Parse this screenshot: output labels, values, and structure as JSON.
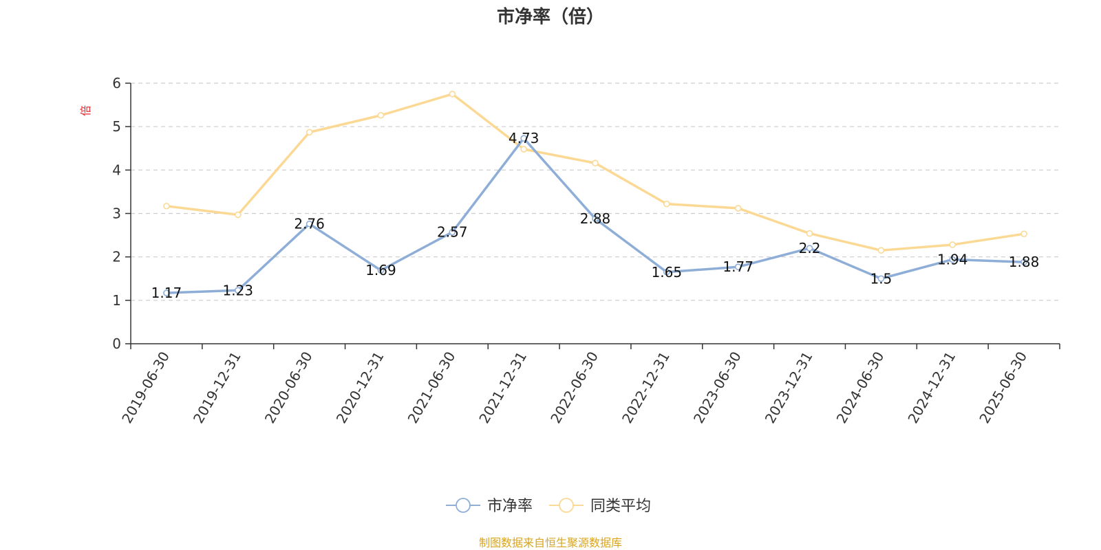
{
  "chart_data": {
    "type": "line",
    "title": "市净率（倍）",
    "ylabel": "倍",
    "xlabel": "",
    "categories": [
      "2019-06-30",
      "2019-12-31",
      "2020-06-30",
      "2020-12-31",
      "2021-06-30",
      "2021-12-31",
      "2022-06-30",
      "2022-12-31",
      "2023-06-30",
      "2023-12-31",
      "2024-06-30",
      "2024-12-31",
      "2025-06-30"
    ],
    "series": [
      {
        "name": "市净率",
        "color": "#8eaed8",
        "show_labels": true,
        "values": [
          1.17,
          1.23,
          2.76,
          1.69,
          2.57,
          4.73,
          2.88,
          1.65,
          1.77,
          2.2,
          1.5,
          1.94,
          1.88
        ]
      },
      {
        "name": "同类平均",
        "color": "#fbd994",
        "show_labels": false,
        "values": [
          3.17,
          2.97,
          4.87,
          5.26,
          5.75,
          4.48,
          4.16,
          3.22,
          3.12,
          2.54,
          2.15,
          2.28,
          2.53
        ]
      }
    ],
    "ylim": [
      0,
      6
    ],
    "yticks": [
      0,
      1,
      2,
      3,
      4,
      5,
      6
    ],
    "grid": true,
    "legend_position": "bottom-center",
    "ylabel_color": "#e0292f"
  },
  "source_note": "制图数据来自恒生聚源数据库",
  "source_note_color": "#d9a520"
}
